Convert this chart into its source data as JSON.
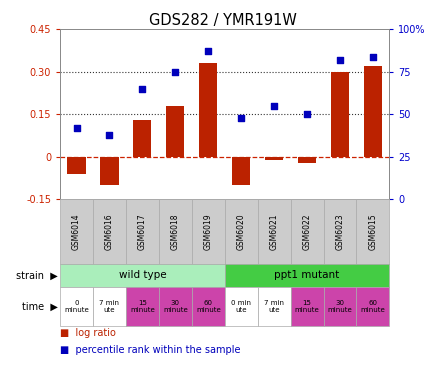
{
  "title": "GDS282 / YMR191W",
  "samples": [
    "GSM6014",
    "GSM6016",
    "GSM6017",
    "GSM6018",
    "GSM6019",
    "GSM6020",
    "GSM6021",
    "GSM6022",
    "GSM6023",
    "GSM6015"
  ],
  "log_ratio": [
    -0.06,
    -0.1,
    0.13,
    0.18,
    0.33,
    -0.1,
    -0.01,
    -0.02,
    0.3,
    0.32
  ],
  "percentile": [
    42,
    38,
    65,
    75,
    87,
    48,
    55,
    50,
    82,
    84
  ],
  "ylim_left": [
    -0.15,
    0.45
  ],
  "ylim_right": [
    0,
    100
  ],
  "yticks_left": [
    -0.15,
    0.0,
    0.15,
    0.3,
    0.45
  ],
  "ytick_labels_left": [
    "-0.15",
    "0",
    "0.15",
    "0.30",
    "0.45"
  ],
  "yticks_right": [
    0,
    25,
    50,
    75,
    100
  ],
  "ytick_labels_right": [
    "0",
    "25",
    "50",
    "75",
    "100%"
  ],
  "hlines": [
    0.15,
    0.3
  ],
  "bar_color": "#bb2200",
  "dot_color": "#0000bb",
  "zero_line_color": "#cc2200",
  "zero_line_style": "--",
  "hline_style": ":",
  "hline_color": "#333333",
  "strain_color_wt": "#aaeebb",
  "strain_color_mut": "#44cc44",
  "time_color_white": "#ffffff",
  "time_color_pink": "#dd66cc",
  "time_color_pink2": "#cc44bb",
  "legend_bar_label": "log ratio",
  "legend_dot_label": "percentile rank within the sample",
  "tick_color_left": "#cc2200",
  "tick_color_right": "#0000cc",
  "time_labels": [
    "0\nminute",
    "7 min\nute",
    "15\nminute",
    "30\nminute",
    "60\nminute",
    "0 min\nute",
    "7 min\nute",
    "15\nminute",
    "30\nminute",
    "60\nminute"
  ],
  "time_colors": [
    "#ffffff",
    "#ffffff",
    "#cc44aa",
    "#cc44aa",
    "#cc44aa",
    "#ffffff",
    "#ffffff",
    "#cc44aa",
    "#cc44aa",
    "#cc44aa"
  ]
}
